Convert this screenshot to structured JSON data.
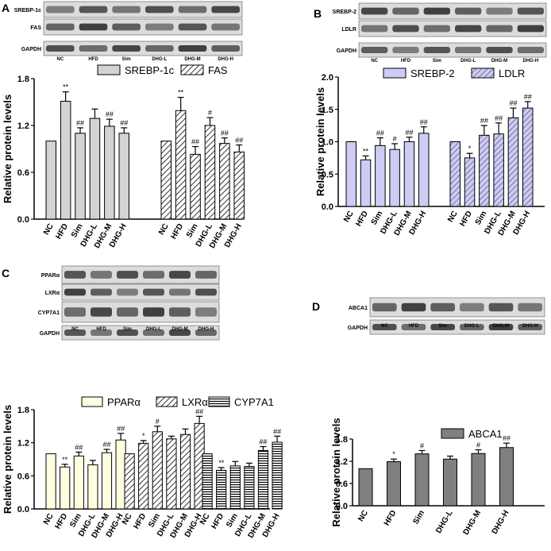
{
  "figure": {
    "lanes": [
      "NC",
      "HFD",
      "Sim",
      "DHG-L",
      "DHG-M",
      "DHG-H"
    ],
    "y_axis_label": "Relative protein levels",
    "colors": {
      "stroke": "#000000",
      "panel_a": "#d3d3d3",
      "panel_b": "#ccccf5",
      "panel_c": "#ffffe0",
      "panel_d": "#808080",
      "blot_bg": "#dcdcdc",
      "band": "#2f2f2f"
    }
  },
  "panels": [
    {
      "id": "A",
      "blots": [
        "SREBP-1c",
        "FAS",
        "GAPDH"
      ],
      "chart_data": {
        "type": "bar",
        "title": "",
        "ylabel": "Relative protein levels",
        "ylim": [
          0,
          1.8
        ],
        "yticks": [
          "0.0",
          "0.6",
          "1.2",
          "1.8"
        ],
        "categories": [
          "NC",
          "HFD",
          "Sim",
          "DHG-L",
          "DHG-M",
          "DHG-H"
        ],
        "series": [
          {
            "name": "SREBP-1c",
            "pattern": "solid",
            "values": [
              1.0,
              1.51,
              1.1,
              1.29,
              1.19,
              1.1
            ],
            "errors": [
              0,
              0.12,
              0.07,
              0.12,
              0.09,
              0.07
            ],
            "annotations": [
              "",
              "**",
              "##",
              "",
              "##",
              "##"
            ]
          },
          {
            "name": "FAS",
            "pattern": "hatch",
            "values": [
              1.0,
              1.39,
              0.83,
              1.2,
              0.97,
              0.86
            ],
            "errors": [
              0,
              0.17,
              0.1,
              0.1,
              0.07,
              0.09
            ],
            "annotations": [
              "",
              "**",
              "##",
              "#",
              "##",
              "##"
            ]
          }
        ]
      }
    },
    {
      "id": "B",
      "blots": [
        "SREBP-2",
        "LDLR",
        "GAPDH"
      ],
      "chart_data": {
        "type": "bar",
        "title": "",
        "ylabel": "Relative protein levels",
        "ylim": [
          0,
          2.0
        ],
        "yticks": [
          "0.0",
          "0.5",
          "1.0",
          "1.5",
          "2.0"
        ],
        "categories": [
          "NC",
          "HFD",
          "Sim",
          "DHG-L",
          "DHG-M",
          "DHG-H"
        ],
        "series": [
          {
            "name": "SREBP-2",
            "pattern": "solid",
            "values": [
              1.0,
              0.72,
              0.94,
              0.88,
              1.0,
              1.13
            ],
            "errors": [
              0,
              0.06,
              0.12,
              0.09,
              0.07,
              0.1
            ],
            "annotations": [
              "",
              "**",
              "##",
              "#",
              "##",
              "##"
            ]
          },
          {
            "name": "LDLR",
            "pattern": "hatch",
            "values": [
              1.0,
              0.75,
              1.1,
              1.12,
              1.37,
              1.52
            ],
            "errors": [
              0,
              0.07,
              0.15,
              0.17,
              0.15,
              0.1
            ],
            "annotations": [
              "",
              "*",
              "##",
              "##",
              "##",
              "##"
            ]
          }
        ]
      }
    },
    {
      "id": "C",
      "blots": [
        "PPARα",
        "LXRα",
        "CYP7A1",
        "GAPDH"
      ],
      "chart_data": {
        "type": "bar",
        "title": "",
        "ylabel": "Relative protein levels",
        "ylim": [
          0,
          1.8
        ],
        "yticks": [
          "0.0",
          "0.6",
          "1.2",
          "1.8"
        ],
        "categories": [
          "NC",
          "HFD",
          "Sim",
          "DHG-L",
          "DHG-M",
          "DHG-H"
        ],
        "series": [
          {
            "name": "PPARα",
            "pattern": "solid",
            "values": [
              1.0,
              0.76,
              0.96,
              0.8,
              1.02,
              1.25
            ],
            "errors": [
              0,
              0.05,
              0.07,
              0.08,
              0.06,
              0.12
            ],
            "annotations": [
              "",
              "**",
              "##",
              "",
              "##",
              "##"
            ]
          },
          {
            "name": "LXRα",
            "pattern": "hatch",
            "values": [
              1.0,
              1.19,
              1.4,
              1.27,
              1.35,
              1.55
            ],
            "errors": [
              0,
              0.05,
              0.1,
              0.05,
              0.1,
              0.13
            ],
            "annotations": [
              "",
              "*",
              "#",
              "",
              "",
              "##"
            ]
          },
          {
            "name": "CYP7A1",
            "pattern": "hlines",
            "values": [
              1.0,
              0.7,
              0.78,
              0.77,
              1.06,
              1.21
            ],
            "errors": [
              0,
              0.05,
              0.08,
              0.06,
              0.07,
              0.11
            ],
            "annotations": [
              "",
              "**",
              "",
              "",
              "##",
              "##"
            ]
          }
        ]
      }
    },
    {
      "id": "D",
      "blots": [
        "ABCA1",
        "GAPDH"
      ],
      "chart_data": {
        "type": "bar",
        "title": "",
        "ylabel": "Relative protein levels",
        "ylim": [
          0,
          1.8
        ],
        "yticks": [
          "0.0",
          "0.6",
          "1.2",
          "1.8"
        ],
        "categories": [
          "NC",
          "HFD",
          "Sim",
          "DHG-L",
          "DHG-M",
          "DHG-H"
        ],
        "series": [
          {
            "name": "ABCA1",
            "pattern": "solid",
            "values": [
              1.0,
              1.19,
              1.4,
              1.26,
              1.41,
              1.57
            ],
            "errors": [
              0,
              0.07,
              0.09,
              0.08,
              0.1,
              0.12
            ],
            "annotations": [
              "",
              "*",
              "#",
              "",
              "#",
              "##"
            ]
          }
        ]
      }
    }
  ]
}
